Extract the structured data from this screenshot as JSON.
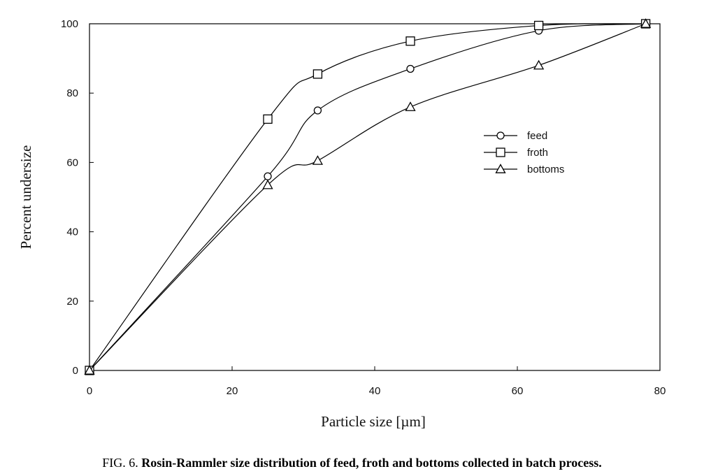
{
  "chart_data": {
    "type": "line",
    "xlabel": "Particle size [µm]",
    "ylabel": "Percent undersize",
    "xlim": [
      0,
      80
    ],
    "ylim": [
      0,
      100
    ],
    "xticks": [
      0,
      20,
      40,
      60,
      80
    ],
    "yticks": [
      0,
      20,
      40,
      60,
      80,
      100
    ],
    "grid": false,
    "legend_position": "right-middle",
    "series": [
      {
        "name": "feed",
        "marker": "circle",
        "x": [
          0,
          25,
          32,
          45,
          63,
          78
        ],
        "y": [
          0,
          56,
          75,
          87,
          98,
          100
        ]
      },
      {
        "name": "froth",
        "marker": "square",
        "x": [
          0,
          25,
          32,
          45,
          63,
          78
        ],
        "y": [
          0,
          72.5,
          85.5,
          95,
          99.5,
          100
        ]
      },
      {
        "name": "bottoms",
        "marker": "triangle",
        "x": [
          0,
          25,
          32,
          45,
          63,
          78
        ],
        "y": [
          0,
          53.5,
          60.5,
          76,
          88,
          100
        ]
      }
    ]
  },
  "caption": {
    "label": "FIG. 6.",
    "text": "Rosin-Rammler size distribution of feed, froth and bottoms collected in batch process."
  },
  "colors": {
    "line": "#000000",
    "marker_fill": "#ffffff"
  }
}
